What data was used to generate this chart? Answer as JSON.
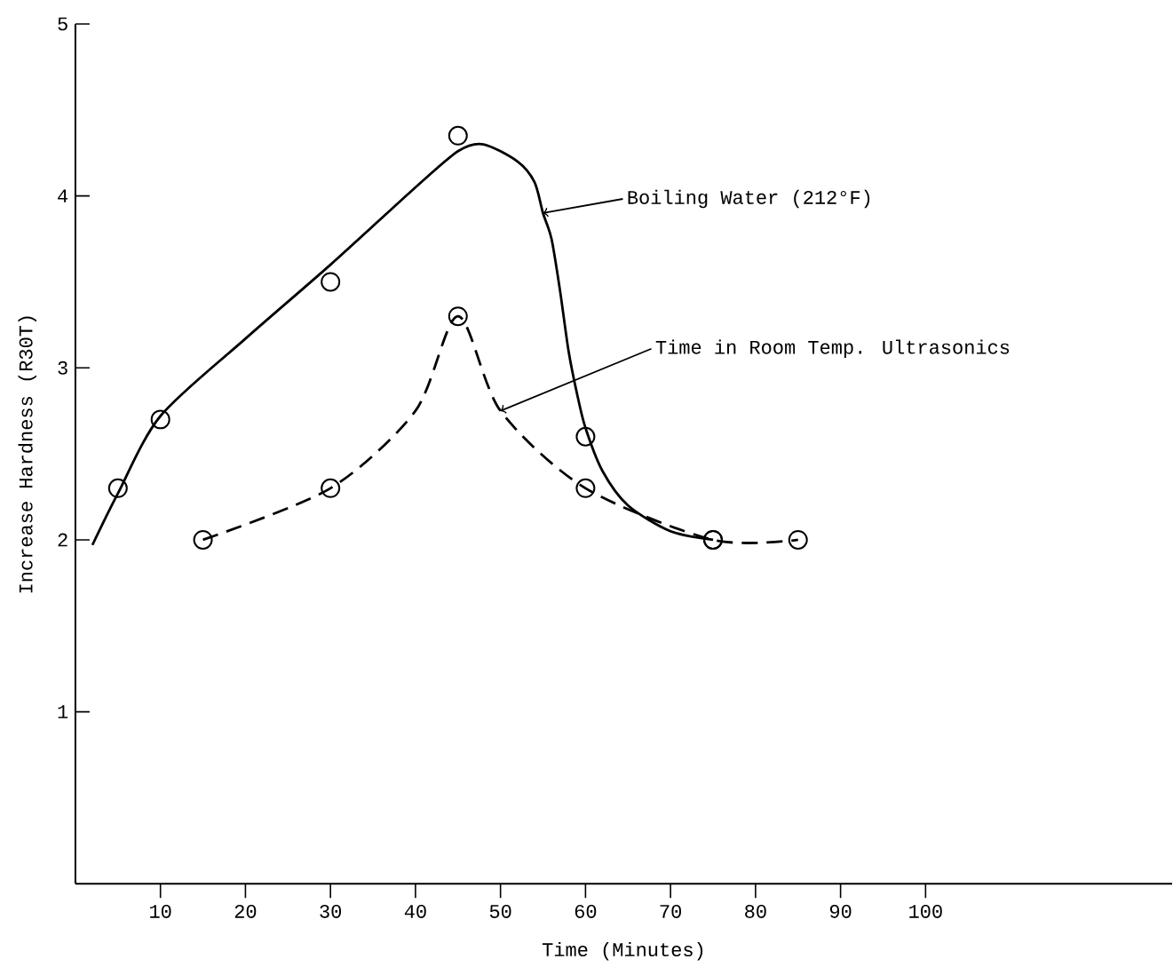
{
  "chart_data": {
    "type": "scatter",
    "xlabel": "Time (Minutes)",
    "ylabel": "Increase Hardness (R30T)",
    "xlim": [
      0,
      129
    ],
    "ylim": [
      0,
      5
    ],
    "xticks": [
      10,
      20,
      30,
      40,
      50,
      60,
      70,
      80,
      90,
      100
    ],
    "yticks": [
      1,
      2,
      3,
      4,
      5
    ],
    "series": [
      {
        "marker": "circle",
        "color": "#000000",
        "x": [
          5,
          10,
          30,
          45,
          60,
          75
        ],
        "values": [
          2.3,
          2.7,
          3.5,
          4.35,
          2.6,
          2.0
        ]
      },
      {
        "type": "line",
        "marker": "none",
        "line_style": "solid",
        "color": "#000000",
        "x": [
          2,
          5,
          10,
          20,
          30,
          40,
          45,
          48,
          52,
          54,
          55,
          56,
          57,
          58,
          59,
          60,
          62,
          65,
          70,
          75
        ],
        "values": [
          1.97,
          2.27,
          2.72,
          3.17,
          3.6,
          4.05,
          4.26,
          4.3,
          4.2,
          4.08,
          3.9,
          3.75,
          3.45,
          3.1,
          2.85,
          2.65,
          2.4,
          2.2,
          2.05,
          2.0
        ]
      },
      {
        "marker": "circle",
        "color": "#000000",
        "x": [
          15,
          30,
          45,
          60,
          75,
          85
        ],
        "values": [
          2.0,
          2.3,
          3.3,
          2.3,
          2.0,
          2.0
        ]
      },
      {
        "type": "line",
        "marker": "none",
        "line_style": "dashed",
        "color": "#000000",
        "x": [
          15,
          30,
          40,
          45,
          50,
          60,
          75,
          85
        ],
        "values": [
          2.0,
          2.3,
          2.75,
          3.3,
          2.75,
          2.3,
          2.0,
          2.0
        ]
      }
    ],
    "annotations": [
      {
        "text": "Boiling Water (212°F)",
        "x": 55,
        "y": 3.9
      },
      {
        "text": "Time in Room Temp. Ultrasonics",
        "x": 50,
        "y": 2.75
      }
    ]
  }
}
